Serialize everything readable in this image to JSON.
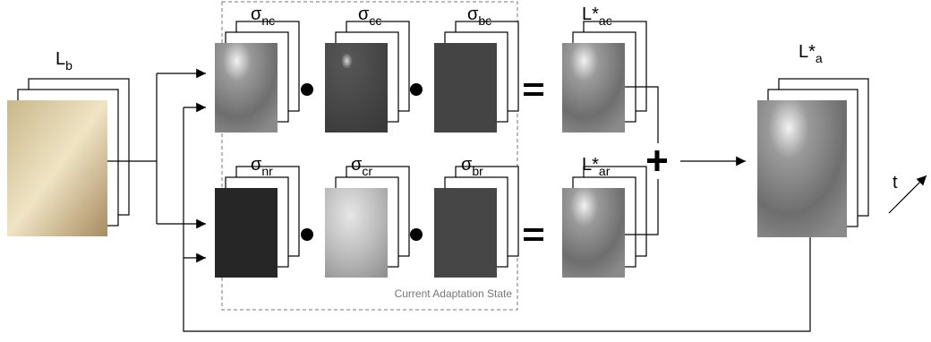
{
  "labels": {
    "lb": {
      "base": "L",
      "sub": "b"
    },
    "nc": {
      "base": "σ",
      "sub": "nc"
    },
    "cc": {
      "base": "σ",
      "sub": "cc"
    },
    "bc": {
      "base": "σ",
      "sub": "bc"
    },
    "ac": {
      "base": "L*",
      "sub": "ac"
    },
    "nr": {
      "base": "σ",
      "sub": "nr"
    },
    "cr": {
      "base": "σ",
      "sub": "cr"
    },
    "br": {
      "base": "σ",
      "sub": "br"
    },
    "ar": {
      "base": "L*",
      "sub": "ar"
    },
    "a": {
      "base": "L*",
      "sub": "a"
    }
  },
  "time_label": "t",
  "box_label": "Current Adaptation State"
}
